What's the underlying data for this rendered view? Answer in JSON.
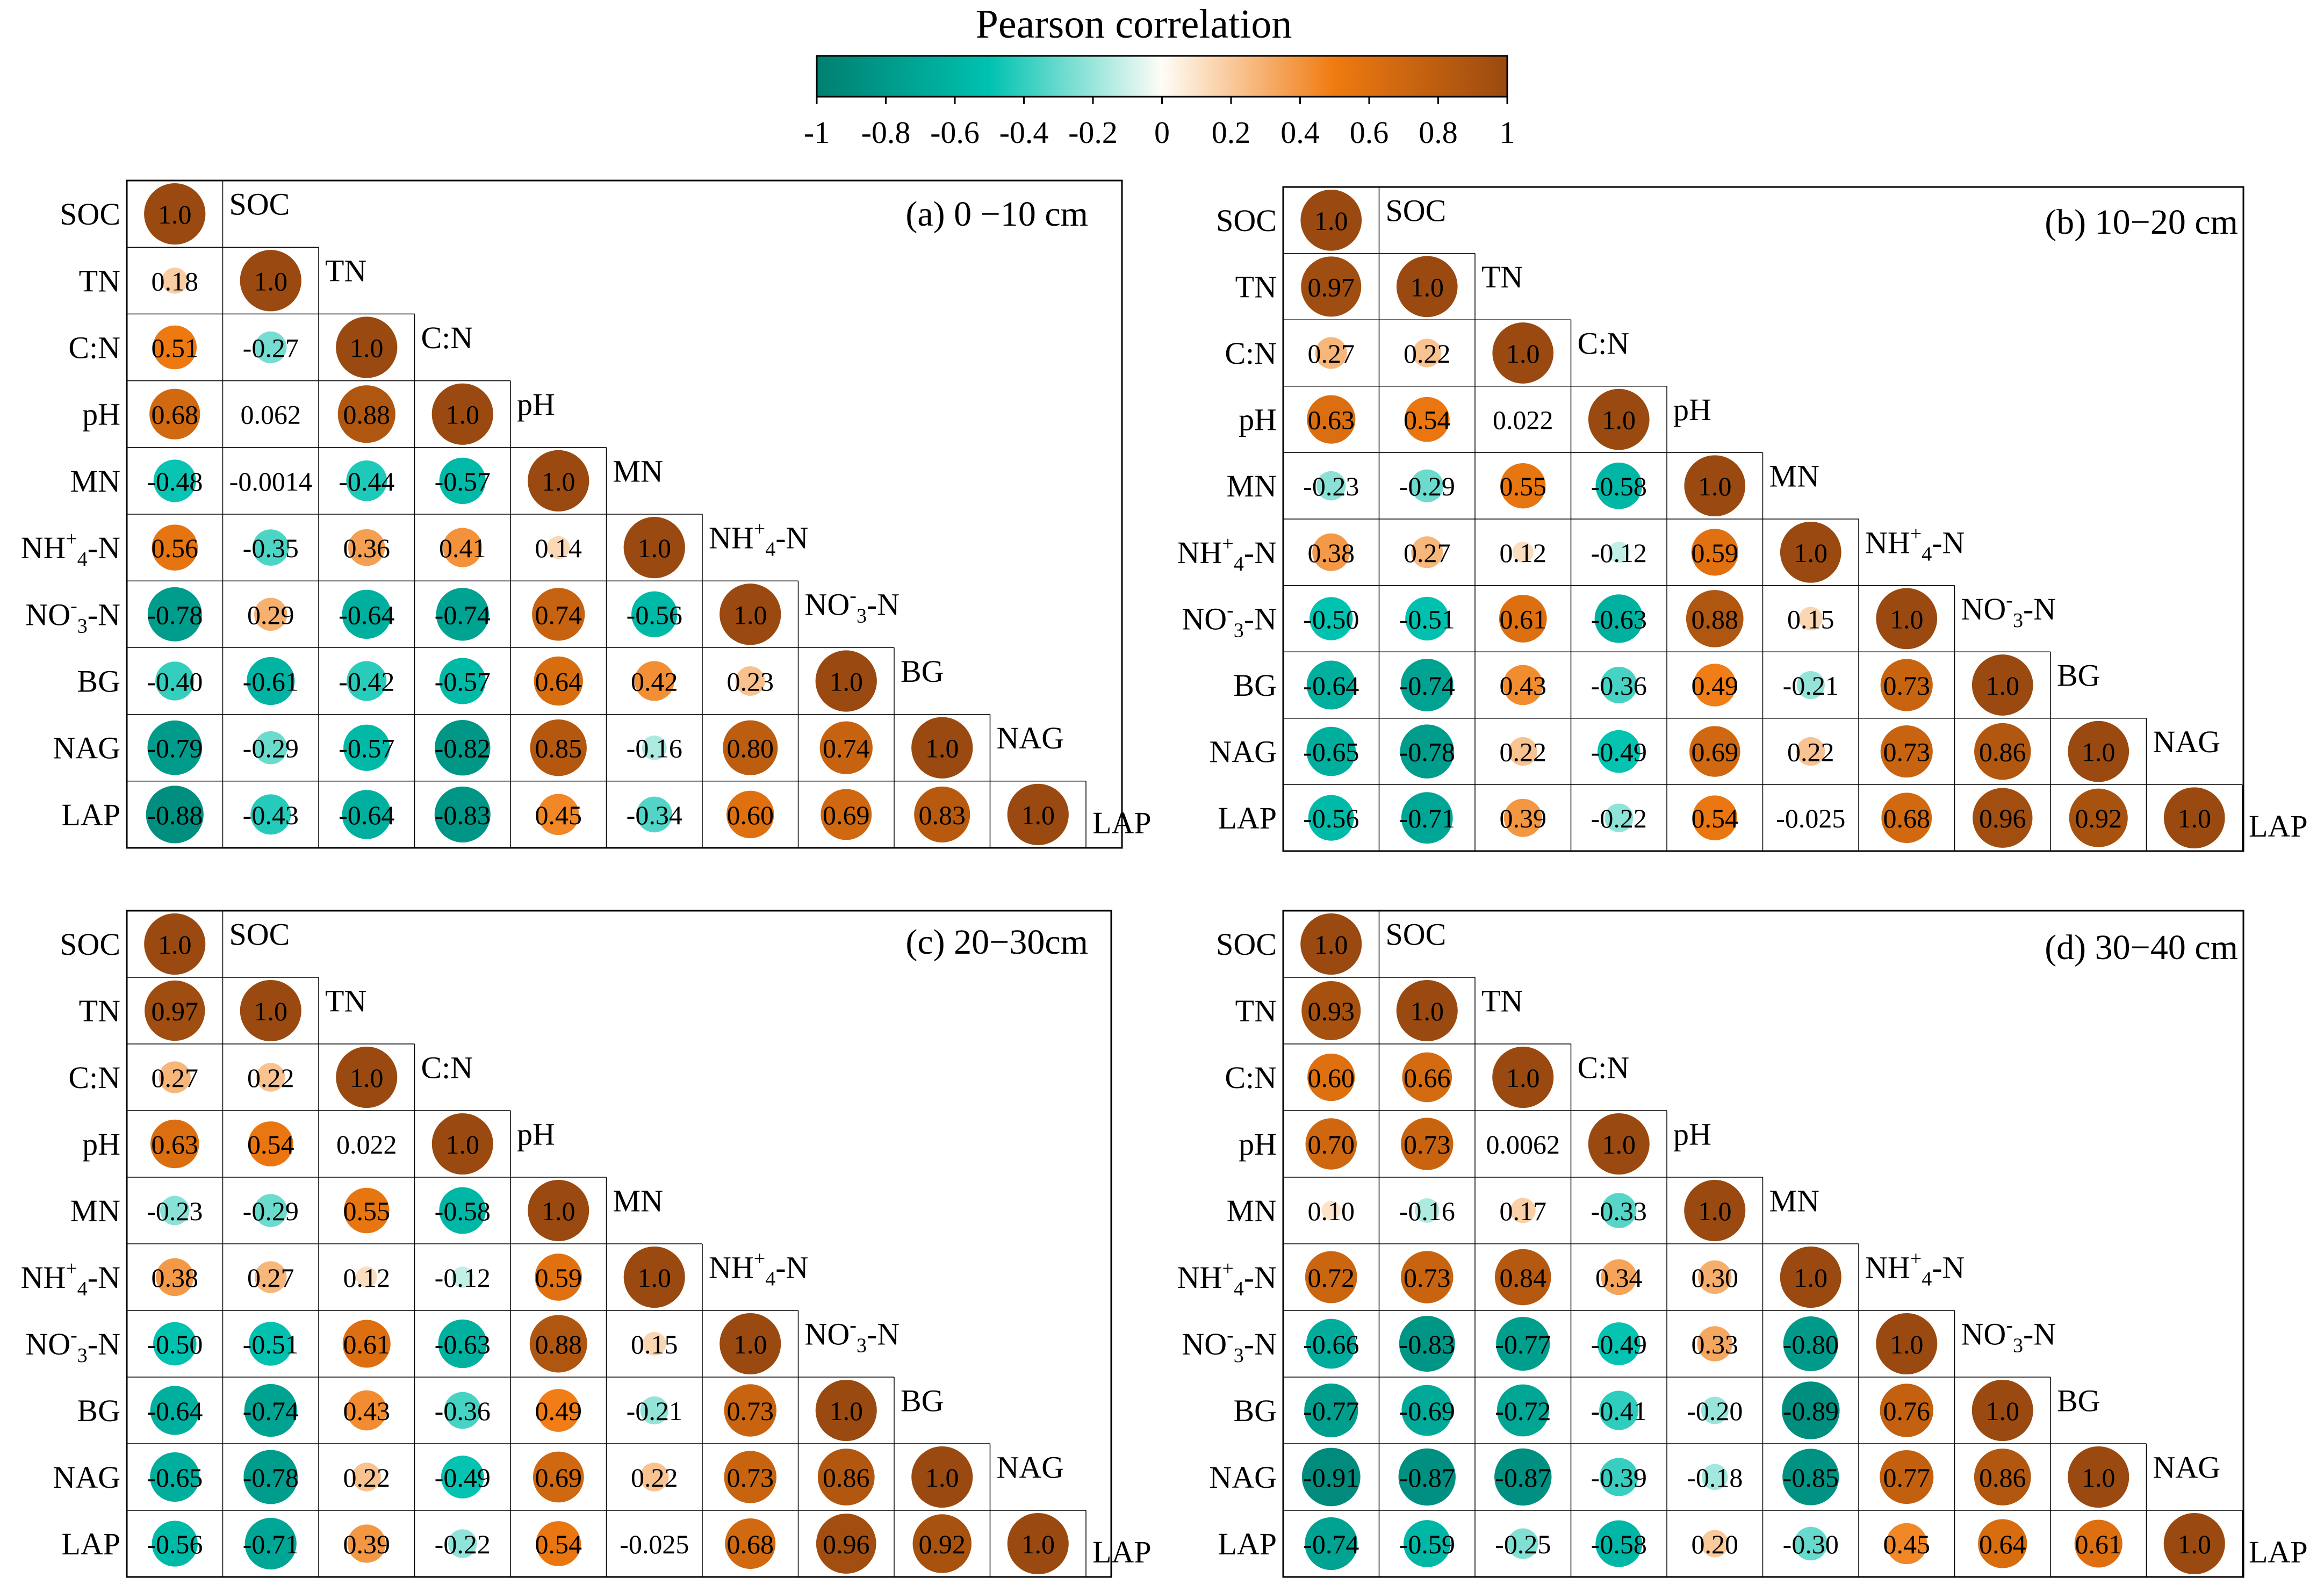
{
  "legend": {
    "title": "Pearson correlation",
    "ticks": [
      "-1",
      "-0.8",
      "-0.6",
      "-0.4",
      "-0.2",
      "0",
      "0.2",
      "0.4",
      "0.6",
      "0.8",
      "1"
    ],
    "colors": {
      "neg_end": "#007f70",
      "neg_mid": "#00c2b0",
      "neutral": "#fffdf7",
      "pos_mid": "#f07a10",
      "pos_end": "#9a4a10"
    }
  },
  "chart_data": [
    {
      "type": "heatmap",
      "title": "(a) 0 −10 cm",
      "variables": [
        "SOC",
        "TN",
        "C:N",
        "pH",
        "MN",
        "NH+4-N",
        "NO-3-N",
        "BG",
        "NAG",
        "LAP"
      ],
      "labels": [
        [
          "1.0"
        ],
        [
          "0.18",
          "1.0"
        ],
        [
          "0.51",
          "-0.27",
          "1.0"
        ],
        [
          "0.68",
          "0.062",
          "0.88",
          "1.0"
        ],
        [
          "-0.48",
          "-0.0014",
          "-0.44",
          "-0.57",
          "1.0"
        ],
        [
          "0.56",
          "-0.35",
          "0.36",
          "0.41",
          "0.14",
          "1.0"
        ],
        [
          "-0.78",
          "0.29",
          "-0.64",
          "-0.74",
          "0.74",
          "-0.56",
          "1.0"
        ],
        [
          "-0.40",
          "-0.61",
          "-0.42",
          "-0.57",
          "0.64",
          "0.42",
          "0.23",
          "1.0"
        ],
        [
          "-0.79",
          "-0.29",
          "-0.57",
          "-0.82",
          "0.85",
          "-0.16",
          "0.80",
          "0.74",
          "1.0"
        ],
        [
          "-0.88",
          "-0.43",
          "-0.64",
          "-0.83",
          "0.45",
          "-0.34",
          "0.60",
          "0.69",
          "0.83",
          "1.0"
        ]
      ]
    },
    {
      "type": "heatmap",
      "title": "(b) 10−20 cm",
      "variables": [
        "SOC",
        "TN",
        "C:N",
        "pH",
        "MN",
        "NH+4-N",
        "NO-3-N",
        "BG",
        "NAG",
        "LAP"
      ],
      "labels": [
        [
          "1.0"
        ],
        [
          "0.97",
          "1.0"
        ],
        [
          "0.27",
          "0.22",
          "1.0"
        ],
        [
          "0.63",
          "0.54",
          "0.022",
          "1.0"
        ],
        [
          "-0.23",
          "-0.29",
          "0.55",
          "-0.58",
          "1.0"
        ],
        [
          "0.38",
          "0.27",
          "0.12",
          "-0.12",
          "0.59",
          "1.0"
        ],
        [
          "-0.50",
          "-0.51",
          "0.61",
          "-0.63",
          "0.88",
          "0.15",
          "1.0"
        ],
        [
          "-0.64",
          "-0.74",
          "0.43",
          "-0.36",
          "0.49",
          "-0.21",
          "0.73",
          "1.0"
        ],
        [
          "-0.65",
          "-0.78",
          "0.22",
          "-0.49",
          "0.69",
          "0.22",
          "0.73",
          "0.86",
          "1.0"
        ],
        [
          "-0.56",
          "-0.71",
          "0.39",
          "-0.22",
          "0.54",
          "-0.025",
          "0.68",
          "0.96",
          "0.92",
          "1.0"
        ]
      ]
    },
    {
      "type": "heatmap",
      "title": "(c) 20−30cm",
      "variables": [
        "SOC",
        "TN",
        "C:N",
        "pH",
        "MN",
        "NH+4-N",
        "NO-3-N",
        "BG",
        "NAG",
        "LAP"
      ],
      "labels": [
        [
          "1.0"
        ],
        [
          "0.97",
          "1.0"
        ],
        [
          "0.27",
          "0.22",
          "1.0"
        ],
        [
          "0.63",
          "0.54",
          "0.022",
          "1.0"
        ],
        [
          "-0.23",
          "-0.29",
          "0.55",
          "-0.58",
          "1.0"
        ],
        [
          "0.38",
          "0.27",
          "0.12",
          "-0.12",
          "0.59",
          "1.0"
        ],
        [
          "-0.50",
          "-0.51",
          "0.61",
          "-0.63",
          "0.88",
          "0.15",
          "1.0"
        ],
        [
          "-0.64",
          "-0.74",
          "0.43",
          "-0.36",
          "0.49",
          "-0.21",
          "0.73",
          "1.0"
        ],
        [
          "-0.65",
          "-0.78",
          "0.22",
          "-0.49",
          "0.69",
          "0.22",
          "0.73",
          "0.86",
          "1.0"
        ],
        [
          "-0.56",
          "-0.71",
          "0.39",
          "-0.22",
          "0.54",
          "-0.025",
          "0.68",
          "0.96",
          "0.92",
          "1.0"
        ]
      ]
    },
    {
      "type": "heatmap",
      "title": "(d) 30−40 cm",
      "variables": [
        "SOC",
        "TN",
        "C:N",
        "pH",
        "MN",
        "NH+4-N",
        "NO-3-N",
        "BG",
        "NAG",
        "LAP"
      ],
      "labels": [
        [
          "1.0"
        ],
        [
          "0.93",
          "1.0"
        ],
        [
          "0.60",
          "0.66",
          "1.0"
        ],
        [
          "0.70",
          "0.73",
          "0.0062",
          "1.0"
        ],
        [
          "0.10",
          "-0.16",
          "0.17",
          "-0.33",
          "1.0"
        ],
        [
          "0.72",
          "0.73",
          "0.84",
          "0.34",
          "0.30",
          "1.0"
        ],
        [
          "-0.66",
          "-0.83",
          "-0.77",
          "-0.49",
          "0.33",
          "-0.80",
          "1.0"
        ],
        [
          "-0.77",
          "-0.69",
          "-0.72",
          "-0.41",
          "-0.20",
          "-0.89",
          "0.76",
          "1.0"
        ],
        [
          "-0.91",
          "-0.87",
          "-0.87",
          "-0.39",
          "-0.18",
          "-0.85",
          "0.77",
          "0.86",
          "1.0"
        ],
        [
          "-0.74",
          "-0.59",
          "-0.25",
          "-0.58",
          "0.20",
          "-0.30",
          "0.45",
          "0.64",
          "0.61",
          "1.0"
        ]
      ]
    }
  ]
}
